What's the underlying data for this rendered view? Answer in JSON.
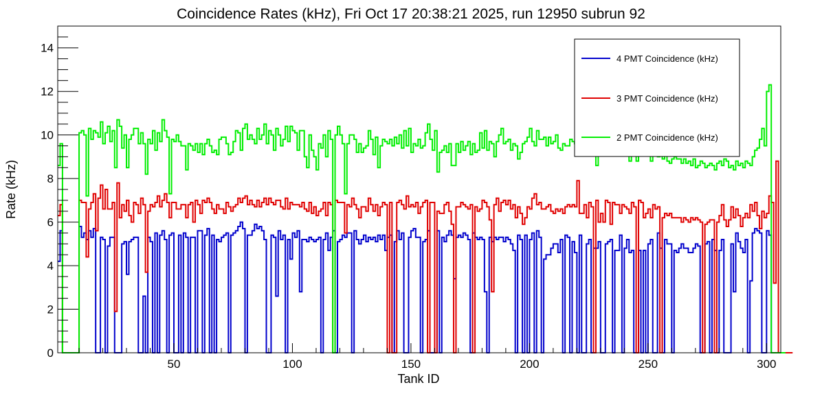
{
  "chart_data": {
    "type": "line",
    "title": "Coincidence Rates (kHz), Fri Oct 17 20:38:21 2025, run 12950 subrun 92",
    "xlabel": "Tank ID",
    "ylabel": "Rate (kHz)",
    "xlim": [
      1,
      306
    ],
    "ylim": [
      0,
      15
    ],
    "x_ticks": [
      50,
      100,
      150,
      200,
      250,
      300
    ],
    "y_ticks": [
      0,
      2,
      4,
      6,
      8,
      10,
      12,
      14
    ],
    "grid": false,
    "legend_position": "top-right",
    "bin_start": 1,
    "bin_width": 1,
    "series": [
      {
        "name": "4 PMT Coincidence (kHz)",
        "color": "#0000cc",
        "values": [
          4.2,
          5.6,
          0,
          0,
          0,
          0,
          0,
          0,
          0,
          5.8,
          5.3,
          5.5,
          5.2,
          5.6,
          5.3,
          5.7,
          0,
          0,
          5.3,
          5.2,
          0,
          4.9,
          5.3,
          5.3,
          0,
          0,
          0,
          5.0,
          5.1,
          3.6,
          5.1,
          5.2,
          5.3,
          5.3,
          0,
          0,
          2.6,
          0,
          5.3,
          5.1,
          0,
          5.5,
          0,
          5.4,
          5.6,
          5.2,
          0,
          5.4,
          5.5,
          0,
          0,
          5.4,
          0,
          5.5,
          5.3,
          0,
          5.3,
          5.3,
          0,
          5.6,
          5.6,
          0,
          5.4,
          5.7,
          0,
          5.4,
          0,
          5.2,
          5.1,
          5.3,
          5.4,
          5.5,
          0,
          5.4,
          5.5,
          5.6,
          5.8,
          6.0,
          5.7,
          0,
          5.4,
          5.4,
          5.6,
          5.9,
          5.7,
          5.8,
          5.6,
          5.2,
          0,
          0,
          5.4,
          5.3,
          2.6,
          5.6,
          5.2,
          5.4,
          0,
          5.2,
          4.3,
          5.5,
          5.3,
          5.6,
          2.8,
          5.2,
          5.2,
          5.1,
          5.3,
          5.2,
          5.1,
          5.2,
          5.3,
          0,
          5.2,
          5.5,
          4.7,
          5.3,
          5.6,
          0,
          5.1,
          5.2,
          5.4,
          5.3,
          5.5,
          5.5,
          0,
          5.6,
          5.2,
          5.0,
          5.2,
          5.4,
          5.1,
          5.3,
          5.2,
          5.3,
          5.1,
          5.4,
          5.2,
          5.4,
          4.7,
          5.3,
          5.4,
          0,
          5.1,
          5.6,
          5.2,
          5.5,
          0,
          0,
          5.3,
          5.6,
          5.7,
          5.3,
          5.3,
          0,
          5.1,
          5.2,
          5.6,
          0,
          0,
          0,
          5.6,
          0,
          5.3,
          5.1,
          5.4,
          5.6,
          5.4,
          3.4,
          5.3,
          5.4,
          5.3,
          5.5,
          5.4,
          5.2,
          0,
          5.5,
          5.3,
          5.2,
          5.3,
          5.2,
          2.8,
          0,
          5.3,
          5.1,
          5.3,
          5.2,
          5.3,
          5.3,
          5.1,
          5.3,
          5.2,
          5.0,
          4.7,
          0,
          5.4,
          5.2,
          0,
          5.4,
          0,
          5.2,
          5.5,
          0,
          5.6,
          5.3,
          0,
          4.3,
          4.5,
          4.5,
          4.8,
          5.0,
          5.0,
          4.6,
          5.2,
          0,
          5.4,
          5.3,
          0,
          5.1,
          4.6,
          0,
          5.4,
          0,
          0,
          5.0,
          5.2,
          0,
          4.8,
          4.8,
          5.1,
          0,
          0,
          5.0,
          5.1,
          5.2,
          0,
          4.7,
          4.7,
          5.4,
          0,
          4.8,
          5.2,
          4.6,
          4.7,
          0,
          0,
          4.7,
          0,
          4.7,
          0,
          5.0,
          5.2,
          0,
          0,
          5.5,
          4.8,
          0,
          5.2,
          5.0,
          5.0,
          0,
          4.7,
          4.6,
          4.8,
          5.0,
          4.8,
          4.8,
          4.6,
          4.6,
          4.8,
          5.0,
          4.9,
          0,
          0,
          5.0,
          5.1,
          0,
          5.2,
          4.7,
          0,
          4.7,
          5.2,
          0,
          0,
          0,
          5.0,
          2.8,
          5.5,
          5.1,
          4.8,
          4.6,
          5.2,
          0,
          3.3,
          5.5,
          5.7,
          5.6,
          5.5,
          0,
          0,
          5.6,
          5.4,
          0,
          0,
          0,
          0,
          0,
          0,
          0
        ]
      },
      {
        "name": "3 PMT Coincidence (kHz)",
        "color": "#e00000",
        "values": [
          6.3,
          6.8,
          0,
          0,
          0,
          0,
          0,
          0,
          0,
          7.0,
          6.9,
          6.9,
          4.4,
          6.6,
          6.9,
          7.3,
          5.6,
          7.1,
          7.7,
          6.6,
          7.5,
          6.6,
          6.6,
          6.9,
          1.9,
          7.8,
          6.2,
          6.8,
          6.5,
          7.0,
          6.3,
          6.0,
          6.9,
          6.8,
          6.4,
          7.1,
          6.8,
          3.7,
          6.5,
          6.8,
          6.7,
          6.9,
          7.2,
          6.7,
          7.0,
          7.3,
          6.9,
          6.2,
          6.9,
          6.9,
          6.6,
          6.6,
          6.8,
          6.8,
          6.2,
          6.8,
          6.9,
          6.0,
          7.0,
          6.8,
          6.4,
          7.0,
          6.9,
          7.1,
          6.9,
          6.6,
          6.4,
          6.8,
          6.6,
          6.6,
          6.4,
          6.9,
          6.7,
          6.5,
          6.7,
          6.8,
          7.1,
          6.9,
          7.1,
          7.2,
          6.8,
          7.0,
          6.8,
          6.7,
          7.0,
          6.7,
          6.9,
          7.1,
          6.8,
          7.1,
          6.9,
          6.8,
          7.0,
          7.0,
          6.7,
          6.6,
          7.1,
          6.6,
          6.9,
          6.8,
          6.8,
          6.8,
          6.7,
          6.9,
          6.6,
          6.5,
          6.9,
          6.4,
          6.7,
          6.3,
          6.5,
          6.6,
          6.9,
          6.3,
          6.9,
          6.8,
          0,
          7.0,
          6.9,
          6.9,
          6.9,
          5.5,
          6.8,
          6.7,
          7.1,
          6.8,
          6.6,
          6.2,
          6.7,
          6.7,
          6.5,
          7.1,
          6.8,
          6.5,
          6.8,
          6.3,
          6.7,
          6.9,
          6.8,
          0,
          6.9,
          0,
          0,
          6.9,
          7.0,
          6.8,
          6.6,
          7.2,
          6.7,
          6.8,
          6.7,
          6.9,
          6.4,
          6.7,
          6.9,
          7.0,
          0,
          6.9,
          6.9,
          0,
          6.5,
          6.4,
          6.4,
          6.8,
          6.9,
          6.5,
          5.9,
          0,
          6.7,
          6.7,
          6.9,
          6.8,
          6.7,
          6.6,
          6.8,
          0,
          6.7,
          6.5,
          6.6,
          7.0,
          6.9,
          6.7,
          6.1,
          2.8,
          6.8,
          7.1,
          6.5,
          6.9,
          7.0,
          6.8,
          7.0,
          6.6,
          6.8,
          6.2,
          6.7,
          6.4,
          5.9,
          6.2,
          6.7,
          6.6,
          7.1,
          7.3,
          6.8,
          6.9,
          6.6,
          6.6,
          6.7,
          6.8,
          6.5,
          6.4,
          6.6,
          6.5,
          6.6,
          6.4,
          6.7,
          6.8,
          6.7,
          6.8,
          6.7,
          7.9,
          6.4,
          6.4,
          6.8,
          6.2,
          6.9,
          6.7,
          0,
          7.0,
          6.0,
          6.4,
          6.0,
          7.0,
          6.9,
          5.9,
          6.9,
          6.8,
          6.8,
          6.4,
          6.8,
          6.7,
          6.6,
          6.4,
          6.9,
          6.7,
          0,
          7.0,
          6.9,
          6.2,
          6.4,
          6.6,
          6.2,
          6.8,
          6.6,
          6.7,
          0,
          6.2,
          6.4,
          6.3,
          6.4,
          6.2,
          6.2,
          6.2,
          6.2,
          6.0,
          6.2,
          6.1,
          6.0,
          6.2,
          6.1,
          6.2,
          6.1,
          6.0,
          0,
          5.9,
          6.0,
          6.1,
          6.1,
          0,
          6.0,
          6.3,
          6.8,
          6.1,
          5.8,
          6.1,
          6.7,
          6.2,
          6.6,
          6.3,
          5.8,
          6.2,
          6.4,
          6.2,
          6.8,
          6.5,
          6.9,
          6.3,
          5.7,
          6.5,
          6.2,
          6.4,
          7.2,
          6.9,
          3.2,
          8.8,
          0,
          0,
          0,
          0,
          0,
          0
        ]
      },
      {
        "name": "2 PMT Coincidence (kHz)",
        "color": "#00ee00",
        "values": [
          8.6,
          9.6,
          0,
          0,
          0,
          0,
          0,
          0,
          0,
          10.1,
          10.2,
          10.0,
          7.2,
          10.3,
          9.8,
          10.2,
          10.1,
          9.9,
          10.6,
          9.6,
          10.1,
          10.4,
          9.7,
          10.2,
          8.5,
          10.7,
          10.4,
          9.4,
          10.0,
          8.5,
          9.8,
          10.0,
          10.3,
          10.3,
          9.6,
          10.1,
          9.6,
          8.2,
          9.8,
          9.6,
          10.2,
          9.3,
          10.1,
          9.7,
          10.7,
          10.2,
          9.9,
          7.3,
          9.8,
          9.7,
          10.0,
          9.7,
          9.5,
          9.5,
          8.4,
          9.6,
          9.5,
          9.3,
          9.6,
          9.2,
          9.6,
          9.1,
          9.6,
          9.8,
          9.5,
          9.2,
          9.3,
          9.1,
          9.8,
          9.9,
          9.9,
          9.6,
          9.1,
          9.2,
          9.7,
          10.2,
          10.1,
          9.3,
          10.3,
          10.5,
          9.8,
          10.0,
          9.8,
          9.6,
          10.3,
          9.8,
          10.0,
          10.5,
          9.6,
          10.2,
          10.0,
          9.3,
          10.3,
          10.0,
          9.5,
          9.8,
          10.4,
          9.7,
          10.4,
          10.2,
          10.1,
          9.3,
          10.2,
          10.2,
          9.0,
          8.5,
          10.0,
          9.3,
          9.0,
          8.4,
          9.6,
          9.4,
          10.0,
          9.0,
          10.2,
          9.8,
          0,
          10.0,
          10.4,
          10.0,
          9.6,
          7.3,
          9.6,
          10.0,
          10.0,
          9.8,
          9.2,
          9.6,
          9.2,
          9.4,
          9.5,
          10.2,
          9.8,
          9.1,
          9.9,
          8.5,
          9.5,
          9.8,
          9.7,
          9.6,
          9.8,
          9.5,
          9.9,
          9.6,
          10.0,
          9.4,
          10.2,
          9.5,
          10.3,
          9.2,
          9.6,
          9.5,
          9.8,
          9.4,
          9.5,
          10.1,
          10.5,
          9.8,
          9.3,
          10.2,
          8.3,
          9.2,
          9.3,
          9.5,
          9.2,
          9.6,
          8.6,
          8.6,
          9.6,
          9.2,
          9.7,
          9.3,
          9.5,
          9.7,
          9.1,
          9.6,
          9.2,
          9.3,
          10.1,
          9.4,
          10.2,
          9.3,
          9.7,
          9.6,
          9.0,
          9.7,
          10.0,
          10.3,
          9.6,
          9.7,
          9.8,
          9.3,
          9.6,
          9.5,
          8.9,
          9.2,
          9.6,
          9.7,
          9.9,
          10.3,
          9.7,
          9.5,
          10.2,
          9.8,
          9.8,
          9.9,
          9.5,
          9.9,
          9.6,
          9.7,
          10.0,
          9.4,
          9.3,
          9.6,
          9.5,
          9.5,
          9.8,
          9.7,
          9.6,
          9.3,
          10.9,
          9.6,
          9.5,
          9.7,
          9.1,
          9.6,
          9.5,
          8.6,
          9.7,
          9.1,
          9.3,
          9.4,
          9.6,
          9.1,
          9.2,
          9.6,
          9.5,
          9.3,
          9.1,
          9.2,
          9.3,
          8.8,
          9.3,
          9.2,
          8.8,
          9.4,
          9.7,
          9.1,
          9.2,
          9.3,
          8.8,
          9.3,
          9.1,
          9.0,
          9.2,
          8.9,
          9.1,
          8.8,
          8.7,
          8.9,
          9.0,
          8.9,
          8.9,
          8.7,
          8.9,
          8.7,
          8.8,
          8.6,
          8.9,
          8.5,
          8.6,
          8.8,
          8.7,
          8.5,
          8.6,
          8.7,
          8.6,
          8.4,
          8.7,
          8.8,
          8.6,
          8.9,
          8.8,
          8.5,
          8.6,
          8.4,
          8.8,
          8.6,
          8.7,
          8.5,
          8.8,
          8.7,
          8.6,
          9.0,
          9.3,
          9.4,
          9.8,
          10.3,
          9.5,
          12.0,
          12.3,
          0,
          0,
          0,
          0,
          0,
          0
        ]
      }
    ]
  }
}
